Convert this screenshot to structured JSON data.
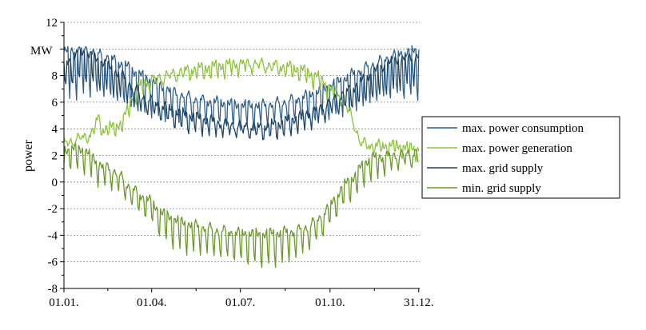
{
  "chart_data": {
    "type": "line",
    "title": "",
    "xlabel": "",
    "ylabel": "power",
    "y_unit": "MW",
    "xlim": [
      0,
      365
    ],
    "ylim": [
      -8,
      12
    ],
    "grid": "horizontal dotted",
    "legend_position": "right",
    "x_ticks": [
      {
        "value": 0,
        "label": "01.01."
      },
      {
        "value": 90,
        "label": "01.04."
      },
      {
        "value": 181,
        "label": "01.07."
      },
      {
        "value": 273,
        "label": "01.10."
      },
      {
        "value": 364,
        "label": "31.12."
      }
    ],
    "y_ticks": [
      {
        "value": -8,
        "label": "-8"
      },
      {
        "value": -6,
        "label": "-6"
      },
      {
        "value": -4,
        "label": "-4"
      },
      {
        "value": -2,
        "label": "-2"
      },
      {
        "value": 0,
        "label": "0"
      },
      {
        "value": 2,
        "label": "2"
      },
      {
        "value": 4,
        "label": "4"
      },
      {
        "value": 6,
        "label": "6"
      },
      {
        "value": 8,
        "label": "8"
      },
      {
        "value": 12,
        "label": "12"
      }
    ],
    "series": [
      {
        "name": "max. power consumption",
        "color": "#2f5f8a",
        "x": [
          0,
          20,
          40,
          60,
          80,
          100,
          120,
          140,
          160,
          180,
          200,
          220,
          240,
          260,
          280,
          300,
          320,
          340,
          364
        ],
        "y": [
          9.8,
          10.0,
          9.6,
          8.9,
          8.0,
          7.2,
          6.6,
          6.2,
          6.0,
          5.8,
          5.8,
          6.0,
          6.3,
          6.8,
          7.5,
          8.3,
          9.0,
          9.6,
          9.9
        ],
        "weekly_dip": [
          3.5,
          3.5,
          3.2,
          3.0,
          2.6,
          2.2,
          2.0,
          1.8,
          1.6,
          1.5,
          1.5,
          1.6,
          1.8,
          2.0,
          2.3,
          2.7,
          3.0,
          3.3,
          3.5
        ]
      },
      {
        "name": "max. power generation",
        "color": "#8fc33a",
        "x": [
          0,
          20,
          30,
          35,
          40,
          50,
          60,
          70,
          75,
          80,
          100,
          120,
          140,
          160,
          180,
          200,
          220,
          240,
          260,
          275,
          285,
          295,
          305,
          320,
          340,
          364
        ],
        "y": [
          3.0,
          3.5,
          3.8,
          5.0,
          4.0,
          4.2,
          4.5,
          6.5,
          7.0,
          7.5,
          8.0,
          8.4,
          8.6,
          8.8,
          9.0,
          9.0,
          8.8,
          8.6,
          8.0,
          7.0,
          6.5,
          5.0,
          3.0,
          2.8,
          2.8,
          2.5
        ],
        "weekly_dip": [
          0.6,
          0.6,
          0.6,
          0.6,
          0.6,
          0.6,
          0.6,
          0.8,
          0.8,
          0.8,
          0.8,
          0.8,
          0.8,
          0.8,
          0.8,
          0.8,
          0.8,
          0.8,
          0.8,
          0.8,
          0.6,
          0.6,
          0.6,
          0.6,
          0.6,
          0.6
        ]
      },
      {
        "name": "max. grid supply",
        "color": "#1c4466",
        "x": [
          0,
          20,
          40,
          60,
          80,
          100,
          120,
          140,
          160,
          180,
          200,
          220,
          240,
          260,
          280,
          300,
          320,
          340,
          364
        ],
        "y": [
          9.0,
          9.8,
          9.0,
          8.0,
          6.5,
          5.8,
          5.2,
          4.8,
          4.5,
          4.3,
          4.2,
          4.4,
          4.9,
          5.5,
          6.4,
          7.3,
          8.4,
          9.2,
          9.5
        ],
        "weekly_dip": [
          2.0,
          2.0,
          1.8,
          1.6,
          1.4,
          1.2,
          1.2,
          1.0,
          1.0,
          1.0,
          1.0,
          1.0,
          1.0,
          1.2,
          1.4,
          1.6,
          1.8,
          2.0,
          2.0
        ]
      },
      {
        "name": "min. grid supply",
        "color": "#6b9a2b",
        "x": [
          0,
          20,
          30,
          40,
          50,
          60,
          70,
          80,
          90,
          100,
          120,
          140,
          160,
          180,
          200,
          220,
          240,
          250,
          260,
          270,
          280,
          290,
          300,
          305,
          310,
          320,
          340,
          364
        ],
        "y": [
          2.5,
          2.5,
          1.8,
          1.2,
          1.0,
          0.3,
          -0.5,
          -1.0,
          -1.5,
          -2.3,
          -3.0,
          -3.3,
          -3.6,
          -3.8,
          -3.9,
          -3.8,
          -3.6,
          -3.3,
          -2.8,
          -2.0,
          -1.0,
          0.0,
          0.6,
          1.2,
          1.6,
          1.9,
          2.1,
          2.3
        ],
        "weekly_dip": [
          1.2,
          1.5,
          1.5,
          1.5,
          1.5,
          1.5,
          1.5,
          1.5,
          1.5,
          1.8,
          2.0,
          2.0,
          2.2,
          2.2,
          2.2,
          2.2,
          2.0,
          2.0,
          1.8,
          1.8,
          1.5,
          1.5,
          1.5,
          1.5,
          1.5,
          1.5,
          1.2,
          1.2
        ]
      }
    ]
  }
}
